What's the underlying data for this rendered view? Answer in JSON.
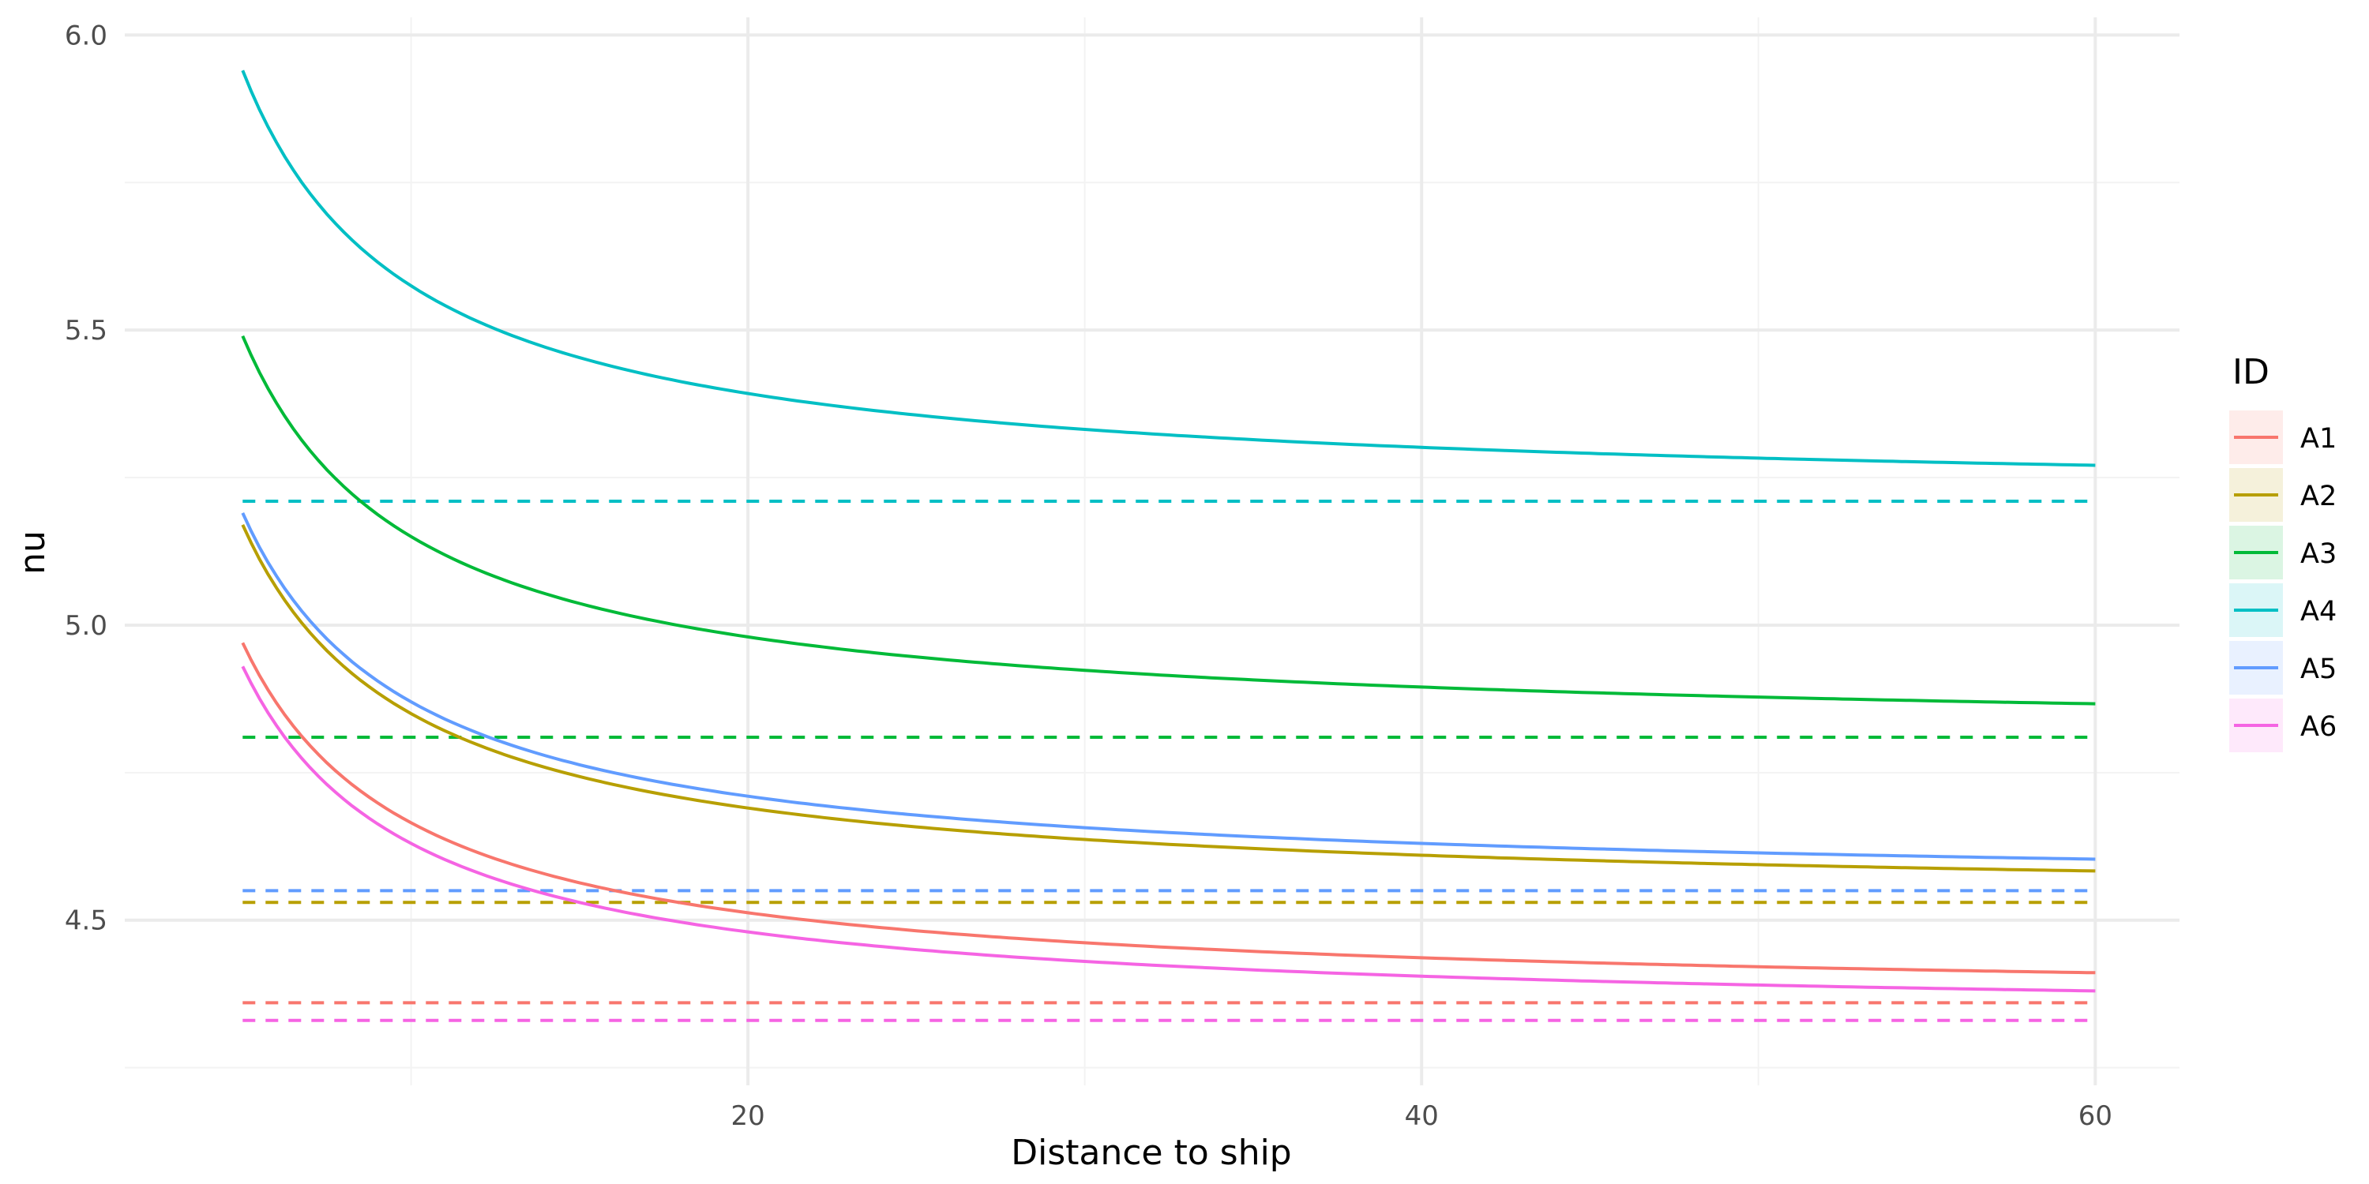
{
  "chart_data": {
    "type": "line",
    "title": "",
    "xlabel": "Distance to ship",
    "ylabel": "nu",
    "xlim": [
      1.5,
      62.5
    ],
    "ylim": [
      4.22,
      6.03
    ],
    "x_ticks": [
      20,
      40,
      60
    ],
    "y_ticks": [
      4.5,
      5.0,
      5.5,
      6.0
    ],
    "x_minor_ticks": [
      10,
      30,
      50
    ],
    "y_minor_ticks": [
      4.25,
      4.75,
      5.25,
      5.75
    ],
    "x_tick_labels": [
      "20",
      "40",
      "60"
    ],
    "y_tick_labels": [
      "4.5",
      "5.0",
      "5.5",
      "6.0"
    ],
    "grid": true,
    "legend": {
      "title": "ID",
      "position": "right"
    },
    "x_range": [
      5,
      60
    ],
    "series": [
      {
        "name": "A1",
        "color": "#F8766D",
        "start": 4.97,
        "asymptote": 4.36,
        "x": [
          5,
          7.5,
          10,
          15,
          20,
          30,
          40,
          60
        ],
        "values": [
          4.97,
          4.77,
          4.66,
          4.56,
          4.5,
          4.46,
          4.43,
          4.41
        ]
      },
      {
        "name": "A2",
        "color": "#B79F00",
        "start": 5.17,
        "asymptote": 4.53,
        "x": [
          5,
          7.5,
          10,
          15,
          20,
          30,
          40,
          60
        ],
        "values": [
          5.17,
          4.97,
          4.85,
          4.75,
          4.69,
          4.64,
          4.61,
          4.58
        ]
      },
      {
        "name": "A3",
        "color": "#00BA38",
        "start": 5.49,
        "asymptote": 4.81,
        "x": [
          5,
          7.5,
          10,
          15,
          20,
          30,
          40,
          60
        ],
        "values": [
          5.49,
          5.27,
          5.15,
          5.04,
          4.97,
          4.92,
          4.89,
          4.86
        ]
      },
      {
        "name": "A4",
        "color": "#00BFC4",
        "start": 5.94,
        "asymptote": 5.21,
        "x": [
          5,
          7.5,
          10,
          15,
          20,
          30,
          40,
          60
        ],
        "values": [
          5.94,
          5.7,
          5.57,
          5.45,
          5.38,
          5.33,
          5.3,
          5.27
        ]
      },
      {
        "name": "A5",
        "color": "#619CFF",
        "start": 5.19,
        "asymptote": 4.55,
        "x": [
          5,
          7.5,
          10,
          15,
          20,
          30,
          40,
          60
        ],
        "values": [
          5.19,
          4.98,
          4.86,
          4.76,
          4.7,
          4.65,
          4.62,
          4.6
        ]
      },
      {
        "name": "A6",
        "color": "#F564E3",
        "start": 4.93,
        "asymptote": 4.33,
        "x": [
          5,
          7.5,
          10,
          15,
          20,
          30,
          40,
          60
        ],
        "values": [
          4.93,
          4.73,
          4.63,
          4.53,
          4.47,
          4.43,
          4.4,
          4.37
        ]
      }
    ]
  }
}
